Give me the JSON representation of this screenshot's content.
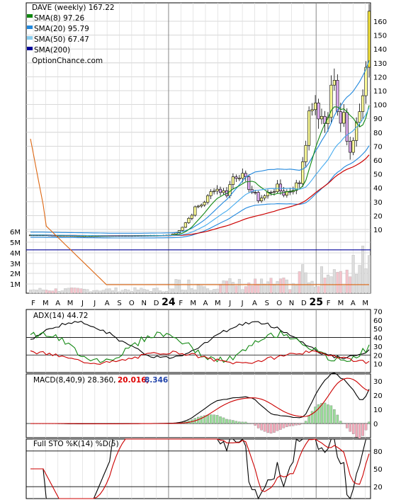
{
  "chart_data": [
    {
      "type": "candlestick",
      "panel": "price",
      "legend": [
        {
          "label": "DAVE (weekly) 167.22",
          "color": ""
        },
        {
          "label": "SMA(8) 97.26",
          "color": "#118811"
        },
        {
          "label": "SMA(20) 95.79",
          "color": "#2288dd"
        },
        {
          "label": "SMA(50) 67.47",
          "color": "#88ccee"
        },
        {
          "label": "SMA(200)",
          "color": "#000099"
        }
      ],
      "watermark": "OptionChance.com",
      "x_tick_labels": [
        "F",
        "M",
        "A",
        "M",
        "J",
        "J",
        "A",
        "S",
        "O",
        "N",
        "D",
        "24",
        "F",
        "M",
        "A",
        "M",
        "J",
        "J",
        "A",
        "S",
        "O",
        "N",
        "D",
        "25",
        "F",
        "M",
        "A",
        "M"
      ],
      "price_ticks": [
        10,
        20,
        30,
        40,
        50,
        60,
        70,
        80,
        90,
        100,
        110,
        120,
        130,
        140,
        150,
        160
      ],
      "volume_ticks": [
        "6M",
        "5M",
        "4M",
        "3M",
        "2M",
        "1M"
      ],
      "ylim": [
        0,
        170
      ],
      "price_path": [
        [
          0,
          6.0
        ],
        [
          4,
          6.0
        ],
        [
          8,
          5.5
        ],
        [
          12,
          5.5
        ],
        [
          16,
          5.3
        ],
        [
          20,
          5.3
        ],
        [
          24,
          5.4
        ],
        [
          28,
          5.5
        ],
        [
          32,
          5.5
        ],
        [
          36,
          5.6
        ],
        [
          40,
          5.7
        ],
        [
          44,
          5.9
        ],
        [
          46,
          7.5
        ],
        [
          48,
          12
        ],
        [
          50,
          18
        ],
        [
          52,
          25
        ],
        [
          54,
          28
        ],
        [
          56,
          33
        ],
        [
          58,
          40
        ],
        [
          60,
          38
        ],
        [
          62,
          36
        ],
        [
          64,
          48
        ],
        [
          66,
          50
        ],
        [
          68,
          45
        ],
        [
          70,
          37
        ],
        [
          72,
          32
        ],
        [
          74,
          34
        ],
        [
          76,
          38
        ],
        [
          78,
          40
        ],
        [
          80,
          36
        ],
        [
          82,
          38
        ],
        [
          84,
          42
        ],
        [
          85,
          44
        ],
        [
          86,
          60
        ],
        [
          87,
          75
        ],
        [
          88,
          90
        ],
        [
          89,
          100
        ],
        [
          90,
          96
        ],
        [
          91,
          90
        ],
        [
          92,
          95
        ],
        [
          93,
          85
        ],
        [
          94,
          92
        ],
        [
          95,
          110
        ],
        [
          96,
          115
        ],
        [
          97,
          100
        ],
        [
          98,
          90
        ],
        [
          99,
          95
        ],
        [
          100,
          78
        ],
        [
          101,
          70
        ],
        [
          102,
          75
        ],
        [
          103,
          85
        ],
        [
          104,
          93
        ],
        [
          105,
          100
        ],
        [
          106,
          130
        ],
        [
          107,
          167.22
        ]
      ],
      "sma_period_days": {
        "sma8": 8,
        "sma20": 20,
        "sma50": 50,
        "sma200": 200
      }
    },
    {
      "type": "line",
      "panel": "ADX",
      "label": "ADX(14) 44.72",
      "yticks": [
        10,
        20,
        30,
        40,
        50,
        60,
        70
      ],
      "hlines": [
        20,
        40
      ],
      "ylim": [
        0,
        72
      ]
    },
    {
      "type": "line+bar",
      "panel": "MACD",
      "label": "MACD(8,40,9) 28.360,",
      "signal_value": "20.016,",
      "hist_value": "8.346",
      "signal_color": "#dd0000",
      "hist_color": "#2244aa",
      "yticks": [
        0,
        10,
        20,
        30
      ],
      "ylim": [
        -10,
        35
      ]
    },
    {
      "type": "line",
      "panel": "Stochastic",
      "label": "Full STO %K(14) %D(5)",
      "yticks": [
        20,
        50,
        80
      ],
      "hlines": [
        20,
        80
      ],
      "ylim": [
        0,
        100
      ]
    }
  ]
}
